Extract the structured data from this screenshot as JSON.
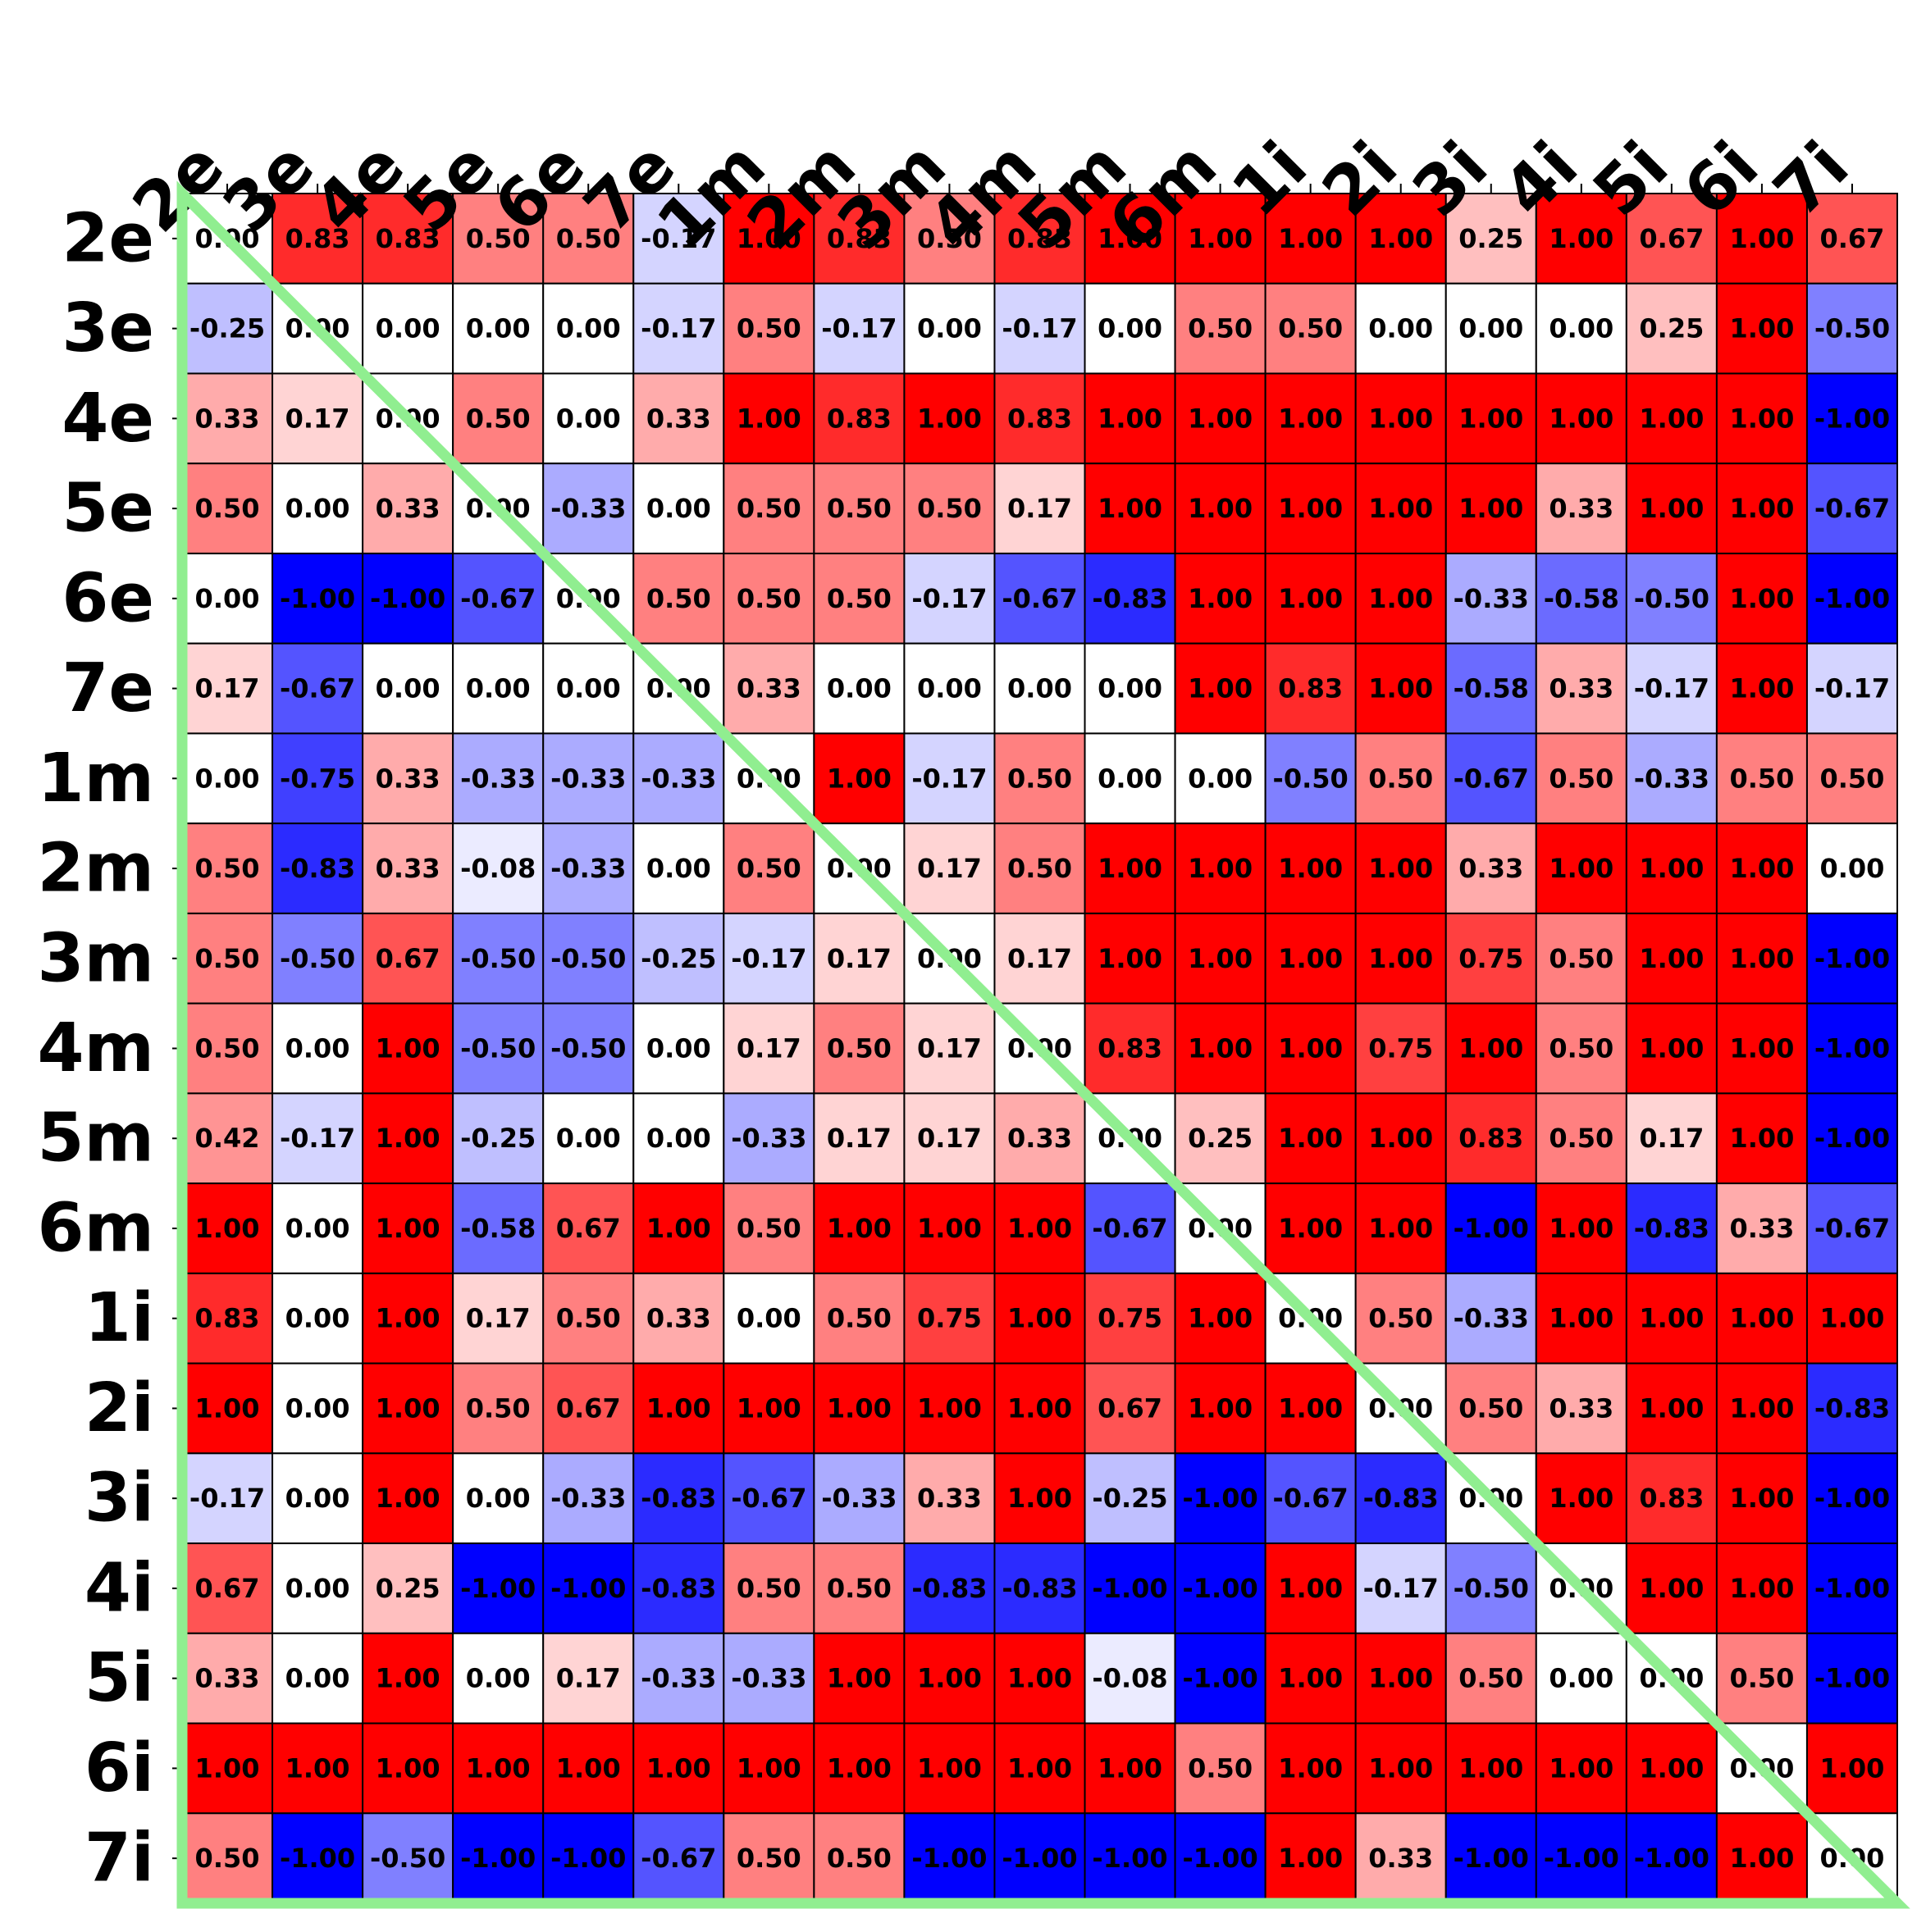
{
  "chart_data": {
    "type": "heatmap",
    "title": "",
    "xlabel": "",
    "ylabel": "",
    "x_tick_position": "top",
    "x_tick_rotation": "-45",
    "colormap": {
      "min": -1.0,
      "max": 1.0,
      "low_color": "#0000ff",
      "mid_color": "#ffffff",
      "high_color": "#ff0000"
    },
    "cell_border_color": "#000000",
    "overlay_frame": {
      "type": "triangle",
      "corners": [
        "top-left",
        "bottom-left",
        "bottom-right"
      ],
      "color": "#90ee90"
    },
    "labels": [
      "2e",
      "3e",
      "4e",
      "5e",
      "6e",
      "7e",
      "1m",
      "2m",
      "3m",
      "4m",
      "5m",
      "6m",
      "1i",
      "2i",
      "3i",
      "4i",
      "5i",
      "6i",
      "7i"
    ],
    "values": [
      [
        0.0,
        0.83,
        0.83,
        0.5,
        0.5,
        -0.17,
        1.0,
        0.83,
        0.5,
        0.83,
        1.0,
        1.0,
        1.0,
        1.0,
        0.25,
        1.0,
        0.67,
        1.0,
        0.67
      ],
      [
        -0.25,
        0.0,
        0.0,
        0.0,
        0.0,
        -0.17,
        0.5,
        -0.17,
        0.0,
        -0.17,
        0.0,
        0.5,
        0.5,
        0.0,
        0.0,
        0.0,
        0.25,
        1.0,
        -0.5
      ],
      [
        0.33,
        0.17,
        0.0,
        0.5,
        0.0,
        0.33,
        1.0,
        0.83,
        1.0,
        0.83,
        1.0,
        1.0,
        1.0,
        1.0,
        1.0,
        1.0,
        1.0,
        1.0,
        -1.0
      ],
      [
        0.5,
        0.0,
        0.33,
        0.0,
        -0.33,
        0.0,
        0.5,
        0.5,
        0.5,
        0.17,
        1.0,
        1.0,
        1.0,
        1.0,
        1.0,
        0.33,
        1.0,
        1.0,
        -0.67
      ],
      [
        0.0,
        -1.0,
        -1.0,
        -0.67,
        0.0,
        0.5,
        0.5,
        0.5,
        -0.17,
        -0.67,
        -0.83,
        1.0,
        1.0,
        1.0,
        -0.33,
        -0.58,
        -0.5,
        1.0,
        -1.0
      ],
      [
        0.17,
        -0.67,
        0.0,
        0.0,
        0.0,
        0.0,
        0.33,
        0.0,
        0.0,
        0.0,
        0.0,
        1.0,
        0.83,
        1.0,
        -0.58,
        0.33,
        -0.17,
        1.0,
        -0.17
      ],
      [
        0.0,
        -0.75,
        0.33,
        -0.33,
        -0.33,
        -0.33,
        0.0,
        1.0,
        -0.17,
        0.5,
        0.0,
        0.0,
        -0.5,
        0.5,
        -0.67,
        0.5,
        -0.33,
        0.5,
        0.5
      ],
      [
        0.5,
        -0.83,
        0.33,
        -0.08,
        -0.33,
        0.0,
        0.5,
        0.0,
        0.17,
        0.5,
        1.0,
        1.0,
        1.0,
        1.0,
        0.33,
        1.0,
        1.0,
        1.0,
        0.0
      ],
      [
        0.5,
        -0.5,
        0.67,
        -0.5,
        -0.5,
        -0.25,
        -0.17,
        0.17,
        0.0,
        0.17,
        1.0,
        1.0,
        1.0,
        1.0,
        0.75,
        0.5,
        1.0,
        1.0,
        -1.0
      ],
      [
        0.5,
        0.0,
        1.0,
        -0.5,
        -0.5,
        0.0,
        0.17,
        0.5,
        0.17,
        0.0,
        0.83,
        1.0,
        1.0,
        0.75,
        1.0,
        0.5,
        1.0,
        1.0,
        -1.0
      ],
      [
        0.42,
        -0.17,
        1.0,
        -0.25,
        0.0,
        0.0,
        -0.33,
        0.17,
        0.17,
        0.33,
        0.0,
        0.25,
        1.0,
        1.0,
        0.83,
        0.5,
        0.17,
        1.0,
        -1.0
      ],
      [
        1.0,
        0.0,
        1.0,
        -0.58,
        0.67,
        1.0,
        0.5,
        1.0,
        1.0,
        1.0,
        -0.67,
        0.0,
        1.0,
        1.0,
        -1.0,
        1.0,
        -0.83,
        0.33,
        -0.67
      ],
      [
        0.83,
        0.0,
        1.0,
        0.17,
        0.5,
        0.33,
        0.0,
        0.5,
        0.75,
        1.0,
        0.75,
        1.0,
        0.0,
        0.5,
        -0.33,
        1.0,
        1.0,
        1.0,
        1.0
      ],
      [
        1.0,
        0.0,
        1.0,
        0.5,
        0.67,
        1.0,
        1.0,
        1.0,
        1.0,
        1.0,
        0.67,
        1.0,
        1.0,
        0.0,
        0.5,
        0.33,
        1.0,
        1.0,
        -0.83
      ],
      [
        -0.17,
        0.0,
        1.0,
        0.0,
        -0.33,
        -0.83,
        -0.67,
        -0.33,
        0.33,
        1.0,
        -0.25,
        -1.0,
        -0.67,
        -0.83,
        0.0,
        1.0,
        0.83,
        1.0,
        -1.0
      ],
      [
        0.67,
        0.0,
        0.25,
        -1.0,
        -1.0,
        -0.83,
        0.5,
        0.5,
        -0.83,
        -0.83,
        -1.0,
        -1.0,
        1.0,
        -0.17,
        -0.5,
        0.0,
        1.0,
        1.0,
        -1.0
      ],
      [
        0.33,
        0.0,
        1.0,
        0.0,
        0.17,
        -0.33,
        -0.33,
        1.0,
        1.0,
        1.0,
        -0.08,
        -1.0,
        1.0,
        1.0,
        0.5,
        0.0,
        0.0,
        0.5,
        -1.0
      ],
      [
        1.0,
        1.0,
        1.0,
        1.0,
        1.0,
        1.0,
        1.0,
        1.0,
        1.0,
        1.0,
        1.0,
        0.5,
        1.0,
        1.0,
        1.0,
        1.0,
        1.0,
        0.0,
        1.0
      ],
      [
        0.5,
        -1.0,
        -0.5,
        -1.0,
        -1.0,
        -0.67,
        0.5,
        0.5,
        -1.0,
        -1.0,
        -1.0,
        -1.0,
        1.0,
        0.33,
        -1.0,
        -1.0,
        -1.0,
        1.0,
        0.0
      ]
    ]
  }
}
